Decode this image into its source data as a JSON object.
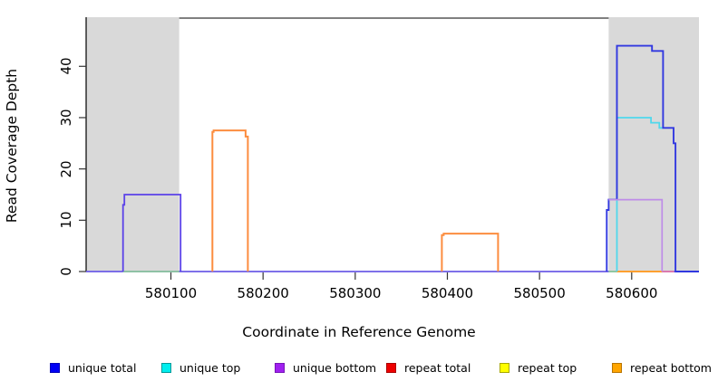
{
  "chart_data": {
    "type": "line",
    "title": "",
    "xlabel": "Coordinate in Reference Genome",
    "ylabel": "Read Coverage Depth",
    "xlim": [
      580008,
      580673
    ],
    "ylim": [
      0,
      49.4
    ],
    "grid": false,
    "x_tick_values": [
      580100,
      580200,
      580300,
      580400,
      580500,
      580600
    ],
    "x_tick_labels": [
      "580100",
      "580200",
      "580300",
      "580400",
      "580500",
      "580600"
    ],
    "y_tick_values": [
      0,
      10,
      20,
      30,
      40
    ],
    "y_tick_labels": [
      "0",
      "10",
      "20",
      "30",
      "40"
    ],
    "shaded_regions": [
      {
        "x0": 580008,
        "x1": 580109,
        "color": "#D9D9D9"
      },
      {
        "x0": 580575,
        "x1": 580673,
        "color": "#D9D9D9"
      }
    ],
    "series": [
      {
        "name": "baseline-unique-total-bottom",
        "color": "#6B5BE6",
        "width": 1.8,
        "points": [
          [
            580008,
            0
          ],
          [
            580673,
            0
          ]
        ]
      },
      {
        "name": "overlap-top-strands-left",
        "color": "#90D890",
        "width": 1.6,
        "points": [
          [
            580048,
            0
          ],
          [
            580109,
            0
          ]
        ]
      },
      {
        "name": "unique-total-bottom-box-left",
        "color": "#5B42E8",
        "width": 1.8,
        "points": [
          [
            580048,
            0
          ],
          [
            580048,
            13
          ],
          [
            580049.5,
            13
          ],
          [
            580049.5,
            15
          ],
          [
            580110.5,
            15
          ],
          [
            580110.5,
            0
          ]
        ]
      },
      {
        "name": "repeat-bottom-box-1",
        "color": "#FC8D3F",
        "width": 2,
        "points": [
          [
            580145,
            0
          ],
          [
            580145,
            27.2
          ],
          [
            580146.3,
            27.2
          ],
          [
            580146.3,
            27.5
          ],
          [
            580181,
            27.5
          ],
          [
            580181,
            26.3
          ],
          [
            580183.5,
            26.3
          ],
          [
            580183.5,
            0
          ]
        ]
      },
      {
        "name": "repeat-bottom-box-2",
        "color": "#FC8D3F",
        "width": 2,
        "points": [
          [
            580394,
            0
          ],
          [
            580394,
            7.1
          ],
          [
            580396,
            7.1
          ],
          [
            580396,
            7.4
          ],
          [
            580455,
            7.4
          ],
          [
            580455,
            0
          ]
        ]
      },
      {
        "name": "overlap-top-strands-right",
        "color": "#90D890",
        "width": 1.6,
        "points": [
          [
            580575,
            0
          ],
          [
            580584,
            0
          ]
        ]
      },
      {
        "name": "repeat-bottom-baseline-right",
        "color": "#FFA030",
        "width": 2,
        "points": [
          [
            580584,
            0
          ],
          [
            580633,
            0
          ]
        ]
      },
      {
        "name": "repeat-total-baseline-right",
        "color": "#F078A0",
        "width": 1.6,
        "points": [
          [
            580633,
            0
          ],
          [
            580646,
            0
          ]
        ]
      },
      {
        "name": "unique-top-right",
        "color": "#4FD8EC",
        "width": 1.8,
        "points": [
          [
            580584,
            0
          ],
          [
            580584,
            30
          ],
          [
            580621,
            30
          ],
          [
            580621,
            29
          ],
          [
            580630,
            29
          ],
          [
            580630,
            28
          ],
          [
            580634,
            28
          ]
        ]
      },
      {
        "name": "unique-total-right",
        "color": "#3138E0",
        "width": 1.9,
        "points": [
          [
            580573,
            0
          ],
          [
            580573,
            12
          ],
          [
            580575,
            12
          ],
          [
            580575,
            14
          ],
          [
            580584,
            14
          ],
          [
            580584,
            44
          ],
          [
            580622,
            44
          ],
          [
            580622,
            43
          ],
          [
            580634,
            43
          ],
          [
            580634,
            28
          ],
          [
            580645.5,
            28
          ],
          [
            580645.5,
            25
          ],
          [
            580647.5,
            25
          ],
          [
            580647.5,
            0
          ],
          [
            580673,
            0
          ]
        ]
      },
      {
        "name": "unique-bottom-right",
        "color": "#BE8CE8",
        "width": 1.7,
        "points": [
          [
            580575,
            14
          ],
          [
            580633,
            14
          ],
          [
            580633,
            0
          ]
        ]
      }
    ],
    "legend": {
      "position": "bottom",
      "entries": [
        {
          "label": "unique total",
          "fill": "#0000F5",
          "border": "#0000B8"
        },
        {
          "label": "unique top",
          "fill": "#00EEEE",
          "border": "#009999"
        },
        {
          "label": "unique bottom",
          "fill": "#A020F0",
          "border": "#7714B8"
        },
        {
          "label": "repeat total",
          "fill": "#EE0000",
          "border": "#AA0000"
        },
        {
          "label": "repeat top",
          "fill": "#FFFF00",
          "border": "#A8A800"
        },
        {
          "label": "repeat bottom",
          "fill": "#FFA500",
          "border": "#B87400"
        }
      ]
    },
    "plot_frame_color": "#000000",
    "tick_color": "#333333"
  }
}
